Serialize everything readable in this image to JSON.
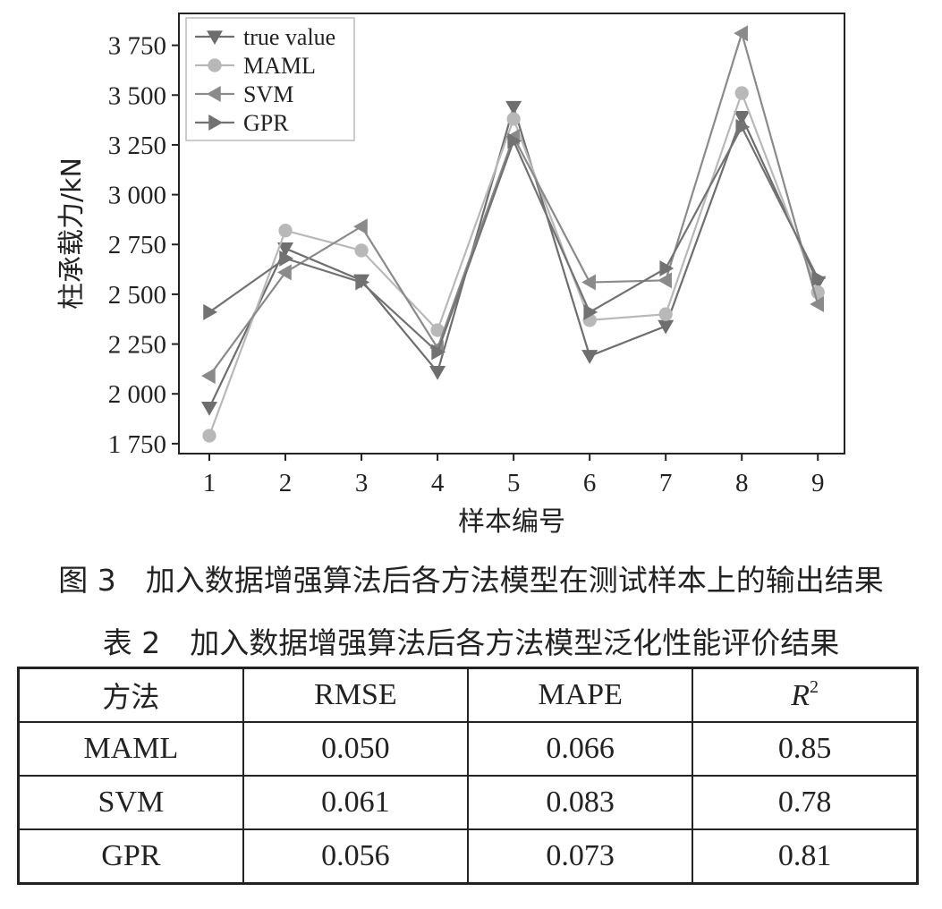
{
  "figure_caption": "图 3　加入数据增强算法后各方法模型在测试样本上的输出结果",
  "table_caption": "表 2　加入数据增强算法后各方法模型泛化性能评价结果",
  "chart_data": {
    "type": "line",
    "xlabel": "样本编号",
    "ylabel": "柱承载力/kN",
    "x": [
      1,
      2,
      3,
      4,
      5,
      6,
      7,
      8,
      9
    ],
    "xlim": [
      0.6,
      9.35
    ],
    "ylim": [
      1700,
      3910
    ],
    "yticks": [
      1750,
      2000,
      2250,
      2500,
      2750,
      3000,
      3250,
      3500,
      3750
    ],
    "ytick_labels": [
      "1 750",
      "2 000",
      "2 250",
      "2 500",
      "2 750",
      "3 000",
      "3 250",
      "3 500",
      "3 750"
    ],
    "xtick_labels": [
      "1",
      "2",
      "3",
      "4",
      "5",
      "6",
      "7",
      "8",
      "9"
    ],
    "grid": false,
    "legend_position": "top-left",
    "series": [
      {
        "name": "true value",
        "marker": "triangle-down",
        "color": "#6e6e6e",
        "values": [
          1930,
          2730,
          2570,
          2110,
          3440,
          2190,
          2340,
          3390,
          2560
        ]
      },
      {
        "name": "MAML",
        "marker": "circle",
        "color": "#b8b8b8",
        "values": [
          1790,
          2820,
          2720,
          2320,
          3380,
          2370,
          2400,
          3510,
          2510
        ]
      },
      {
        "name": "SVM",
        "marker": "triangle-left",
        "color": "#8a8a8a",
        "values": [
          2090,
          2610,
          2840,
          2230,
          3290,
          2560,
          2570,
          3810,
          2450
        ]
      },
      {
        "name": "GPR",
        "marker": "triangle-right",
        "color": "#727272",
        "values": [
          2410,
          2680,
          2560,
          2210,
          3270,
          2410,
          2630,
          3340,
          2580
        ]
      }
    ]
  },
  "table": {
    "headers": [
      "方法",
      "RMSE",
      "MAPE",
      "R",
      "2"
    ],
    "rows": [
      [
        "MAML",
        "0.050",
        "0.066",
        "0.85"
      ],
      [
        "SVM",
        "0.061",
        "0.083",
        "0.78"
      ],
      [
        "GPR",
        "0.056",
        "0.073",
        "0.81"
      ]
    ]
  }
}
